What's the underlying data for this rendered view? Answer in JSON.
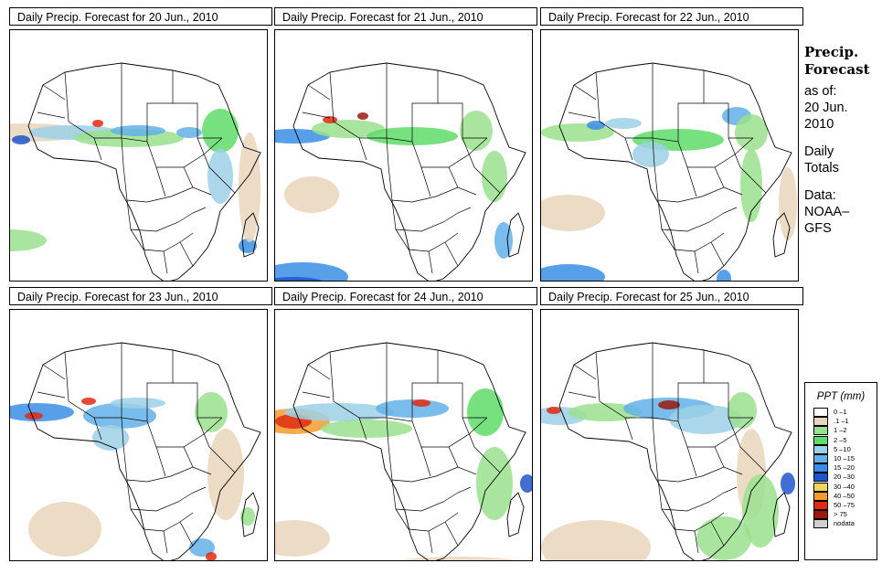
{
  "panels": [
    {
      "title": "Daily Precip. Forecast for  20 Jun., 2010"
    },
    {
      "title": "Daily Precip. Forecast for  21 Jun., 2010"
    },
    {
      "title": "Daily Precip. Forecast for  22 Jun., 2010"
    },
    {
      "title": "Daily Precip. Forecast for  23 Jun., 2010"
    },
    {
      "title": "Daily Precip. Forecast for  24 Jun., 2010"
    },
    {
      "title": "Daily Precip. Forecast for  25 Jun., 2010"
    }
  ],
  "sidebar": {
    "heading1": "Precip.",
    "heading2": "Forecast",
    "asof": "as of:",
    "date1": "20 Jun.",
    "date2": "2010",
    "daily": "Daily",
    "totals": "Totals",
    "data": "Data:",
    "source1": "NOAA–",
    "source2": "GFS"
  },
  "legend": {
    "title": "PPT (mm)",
    "items": [
      {
        "label": "0 –1",
        "color": "#ffffff"
      },
      {
        "label": ".1 –1",
        "color": "#e9d5bb"
      },
      {
        "label": "1 –2",
        "color": "#9be08e"
      },
      {
        "label": "2 –5",
        "color": "#5fdc6a"
      },
      {
        "label": "5 –10",
        "color": "#9ed0e8"
      },
      {
        "label": "10 –15",
        "color": "#63b0e8"
      },
      {
        "label": "15 –20",
        "color": "#3b8ee6"
      },
      {
        "label": "20 –30",
        "color": "#1f55cc"
      },
      {
        "label": "30 –40",
        "color": "#f3d55a"
      },
      {
        "label": "40 –50",
        "color": "#f39c2b"
      },
      {
        "label": "50 –75",
        "color": "#e02a12"
      },
      {
        "label": "> 75",
        "color": "#9a1a10"
      },
      {
        "label": "nodata",
        "color": "#cfcfcf"
      }
    ]
  }
}
